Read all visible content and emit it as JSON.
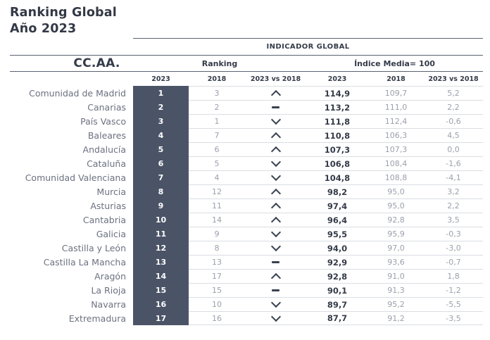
{
  "page": {
    "title_line1": "Ranking Global",
    "title_line2": "Año 2023"
  },
  "table": {
    "group_header": "INDICADOR GLOBAL",
    "ccaa_header": "CC.AA.",
    "ranking_group_header": "Ranking",
    "indice_group_header": "Índice Media= 100",
    "year_headers": [
      "2023",
      "2018",
      "2023 vs 2018",
      "2023",
      "2018",
      "2023 vs 2018"
    ],
    "rows": [
      {
        "name": "Comunidad de Madrid",
        "rank_2023": "1",
        "rank_2018": "3",
        "trend": "up",
        "val_2023": "114,9",
        "val_2018": "109,7",
        "diff": "5,2"
      },
      {
        "name": "Canarias",
        "rank_2023": "2",
        "rank_2018": "2",
        "trend": "same",
        "val_2023": "113,2",
        "val_2018": "111,0",
        "diff": "2,2"
      },
      {
        "name": "País Vasco",
        "rank_2023": "3",
        "rank_2018": "1",
        "trend": "down",
        "val_2023": "111,8",
        "val_2018": "112,4",
        "diff": "-0,6"
      },
      {
        "name": "Baleares",
        "rank_2023": "4",
        "rank_2018": "7",
        "trend": "up",
        "val_2023": "110,8",
        "val_2018": "106,3",
        "diff": "4,5"
      },
      {
        "name": "Andalucía",
        "rank_2023": "5",
        "rank_2018": "6",
        "trend": "up",
        "val_2023": "107,3",
        "val_2018": "107,3",
        "diff": "0,0"
      },
      {
        "name": "Cataluña",
        "rank_2023": "6",
        "rank_2018": "5",
        "trend": "down",
        "val_2023": "106,8",
        "val_2018": "108,4",
        "diff": "-1,6"
      },
      {
        "name": "Comunidad Valenciana",
        "rank_2023": "7",
        "rank_2018": "4",
        "trend": "down",
        "val_2023": "104,8",
        "val_2018": "108,8",
        "diff": "-4,1"
      },
      {
        "name": "Murcia",
        "rank_2023": "8",
        "rank_2018": "12",
        "trend": "up",
        "val_2023": "98,2",
        "val_2018": "95,0",
        "diff": "3,2"
      },
      {
        "name": "Asturias",
        "rank_2023": "9",
        "rank_2018": "11",
        "trend": "up",
        "val_2023": "97,4",
        "val_2018": "95,0",
        "diff": "2,2"
      },
      {
        "name": "Cantabria",
        "rank_2023": "10",
        "rank_2018": "14",
        "trend": "up",
        "val_2023": "96,4",
        "val_2018": "92,8",
        "diff": "3,5"
      },
      {
        "name": "Galicia",
        "rank_2023": "11",
        "rank_2018": "9",
        "trend": "down",
        "val_2023": "95,5",
        "val_2018": "95,9",
        "diff": "-0,3"
      },
      {
        "name": "Castilla y León",
        "rank_2023": "12",
        "rank_2018": "8",
        "trend": "down",
        "val_2023": "94,0",
        "val_2018": "97,0",
        "diff": "-3,0"
      },
      {
        "name": "Castilla La Mancha",
        "rank_2023": "13",
        "rank_2018": "13",
        "trend": "same",
        "val_2023": "92,9",
        "val_2018": "93,6",
        "diff": "-0,7"
      },
      {
        "name": "Aragón",
        "rank_2023": "14",
        "rank_2018": "17",
        "trend": "up",
        "val_2023": "92,8",
        "val_2018": "91,0",
        "diff": "1,8"
      },
      {
        "name": "La Rioja",
        "rank_2023": "15",
        "rank_2018": "15",
        "trend": "same",
        "val_2023": "90,1",
        "val_2018": "91,3",
        "diff": "-1,2"
      },
      {
        "name": "Navarra",
        "rank_2023": "16",
        "rank_2018": "10",
        "trend": "down",
        "val_2023": "89,7",
        "val_2018": "95,2",
        "diff": "-5,5"
      },
      {
        "name": "Extremadura",
        "rank_2023": "17",
        "rank_2018": "16",
        "trend": "down",
        "val_2023": "87,7",
        "val_2018": "91,2",
        "diff": "-3,5"
      }
    ]
  },
  "icons": {
    "up": "chevron-up-icon",
    "down": "chevron-down-icon",
    "same": "dash-icon"
  },
  "colors": {
    "rank_column_bg": "#4b5467",
    "text_dark": "#343b49",
    "text_muted": "#9ba0ac",
    "name_text": "#6b7180",
    "header_line": "#5a6170",
    "row_line": "#dadde3"
  },
  "chart_data": {
    "type": "table",
    "title": "Ranking Global Año 2023 — Indicador Global (Índice Media=100)",
    "columns": [
      "CC.AA.",
      "Ranking 2023",
      "Ranking 2018",
      "2023 vs 2018 (rank trend)",
      "Indicador 2023",
      "Indicador 2018",
      "Indicador 2023 vs 2018"
    ],
    "rows": [
      [
        "Comunidad de Madrid",
        1,
        3,
        "up",
        114.9,
        109.7,
        5.2
      ],
      [
        "Canarias",
        2,
        2,
        "same",
        113.2,
        111.0,
        2.2
      ],
      [
        "País Vasco",
        3,
        1,
        "down",
        111.8,
        112.4,
        -0.6
      ],
      [
        "Baleares",
        4,
        7,
        "up",
        110.8,
        106.3,
        4.5
      ],
      [
        "Andalucía",
        5,
        6,
        "up",
        107.3,
        107.3,
        0.0
      ],
      [
        "Cataluña",
        6,
        5,
        "down",
        106.8,
        108.4,
        -1.6
      ],
      [
        "Comunidad Valenciana",
        7,
        4,
        "down",
        104.8,
        108.8,
        -4.1
      ],
      [
        "Murcia",
        8,
        12,
        "up",
        98.2,
        95.0,
        3.2
      ],
      [
        "Asturias",
        9,
        11,
        "up",
        97.4,
        95.0,
        2.2
      ],
      [
        "Cantabria",
        10,
        14,
        "up",
        96.4,
        92.8,
        3.5
      ],
      [
        "Galicia",
        11,
        9,
        "down",
        95.5,
        95.9,
        -0.3
      ],
      [
        "Castilla y León",
        12,
        8,
        "down",
        94.0,
        97.0,
        -3.0
      ],
      [
        "Castilla La Mancha",
        13,
        13,
        "same",
        92.9,
        93.6,
        -0.7
      ],
      [
        "Aragón",
        14,
        17,
        "up",
        92.8,
        91.0,
        1.8
      ],
      [
        "La Rioja",
        15,
        15,
        "same",
        90.1,
        91.3,
        -1.2
      ],
      [
        "Navarra",
        16,
        10,
        "down",
        89.7,
        95.2,
        -5.5
      ],
      [
        "Extremadura",
        17,
        16,
        "down",
        87.7,
        91.2,
        -3.5
      ]
    ]
  }
}
